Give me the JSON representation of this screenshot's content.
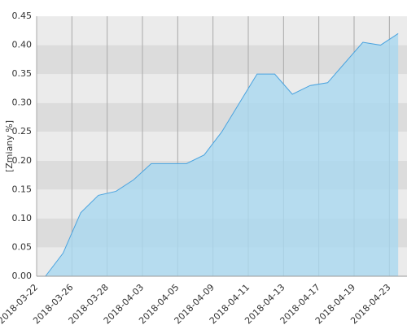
{
  "chart_data": {
    "type": "area",
    "y_label": "[Zmiany %]",
    "categories": [
      "2018-03-22",
      null,
      "2018-03-26",
      null,
      "2018-03-28",
      null,
      "2018-04-03",
      null,
      "2018-04-05",
      null,
      "2018-04-09",
      null,
      "2018-04-11",
      null,
      "2018-04-13",
      null,
      "2018-04-17",
      null,
      "2018-04-19",
      null,
      "2018-04-23"
    ],
    "series": [
      {
        "color": "#4aa3df",
        "values": [
          0,
          0.04,
          0.11,
          0.14,
          0.147,
          0.167,
          0.195,
          0.195,
          0.195,
          0.21,
          0.25,
          0.3,
          0.35,
          0.35,
          0.315,
          0.33,
          0.335,
          0.37,
          0.405,
          0.4,
          0.42
        ]
      }
    ],
    "ylim": [
      0,
      0.45
    ],
    "yticks": [
      {
        "value": 0,
        "label": "0.00"
      },
      {
        "value": 0.05,
        "label": "0.05"
      },
      {
        "value": 0.1,
        "label": "0.10"
      },
      {
        "value": 0.15,
        "label": "0.15"
      },
      {
        "value": 0.2,
        "label": "0.20"
      },
      {
        "value": 0.25,
        "label": "0.25"
      },
      {
        "value": 0.3,
        "label": "0.30"
      },
      {
        "value": 0.35,
        "label": "0.35"
      },
      {
        "value": 0.4,
        "label": "0.40"
      },
      {
        "value": 0.45,
        "label": "0.45"
      }
    ],
    "grid": true
  }
}
